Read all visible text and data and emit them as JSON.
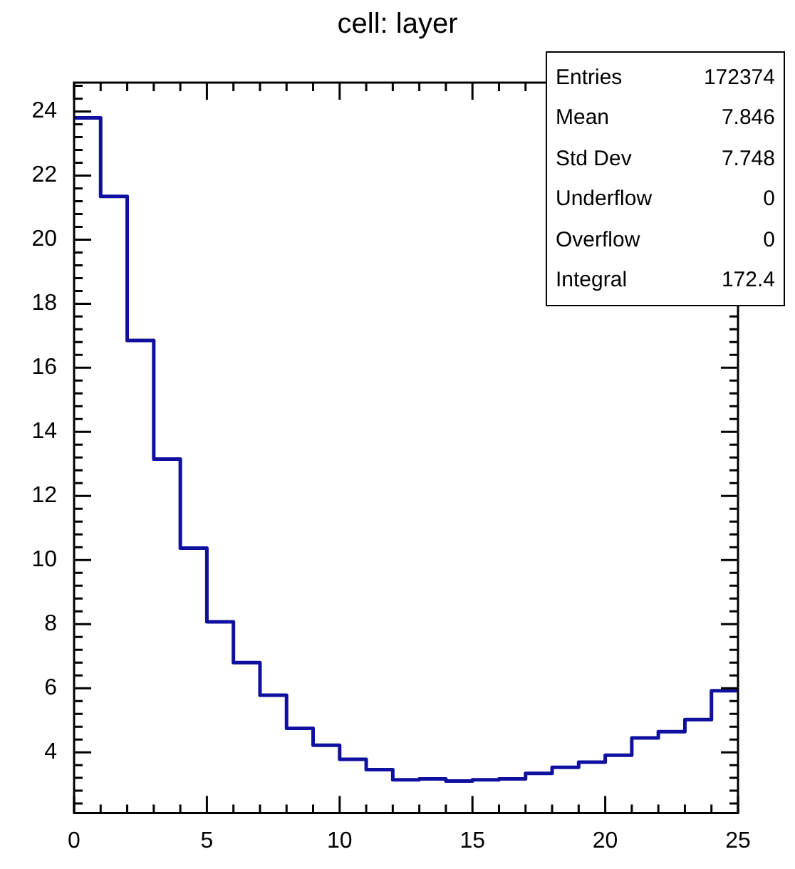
{
  "chart_data": {
    "type": "histogram",
    "title": "cell: layer",
    "bins": [
      0,
      1,
      2,
      3,
      4,
      5,
      6,
      7,
      8,
      9,
      10,
      11,
      12,
      13,
      14,
      15,
      16,
      17,
      18,
      19,
      20,
      21,
      22,
      23,
      24,
      25
    ],
    "values": [
      23.8,
      21.35,
      16.85,
      13.15,
      10.37,
      8.07,
      6.8,
      5.78,
      4.75,
      4.22,
      3.78,
      3.46,
      3.14,
      3.17,
      3.1,
      3.14,
      3.17,
      3.34,
      3.53,
      3.69,
      3.91,
      4.45,
      4.64,
      5.02,
      5.92
    ],
    "color": "#1010a0",
    "xlim": [
      0,
      25
    ],
    "xticks": [
      0,
      {
        "value": 1,
        "label": null
      },
      {
        "value": 2,
        "label": null
      },
      {
        "value": 3,
        "label": null
      },
      {
        "value": 4,
        "label": null
      },
      5,
      {
        "value": 6,
        "label": null
      },
      {
        "value": 7,
        "label": null
      },
      {
        "value": 8,
        "label": null
      },
      {
        "value": 9,
        "label": null
      },
      10,
      {
        "value": 11,
        "label": null
      },
      {
        "value": 12,
        "label": null
      },
      {
        "value": 13,
        "label": null
      },
      {
        "value": 14,
        "label": null
      },
      15,
      {
        "value": 16,
        "label": null
      },
      {
        "value": 17,
        "label": null
      },
      {
        "value": 18,
        "label": null
      },
      {
        "value": 19,
        "label": null
      },
      20,
      {
        "value": 21,
        "label": null
      },
      {
        "value": 22,
        "label": null
      },
      {
        "value": 23,
        "label": null
      },
      {
        "value": 24,
        "label": null
      },
      25
    ],
    "ylim": [
      2.1,
      24.9
    ],
    "yticks": [
      {
        "value": 2.4,
        "label": null
      },
      {
        "value": 2.8,
        "label": null
      },
      {
        "value": 3.2,
        "label": null
      },
      {
        "value": 3.6,
        "label": null
      },
      4,
      {
        "value": 4.4,
        "label": null
      },
      {
        "value": 4.8,
        "label": null
      },
      {
        "value": 5.2,
        "label": null
      },
      {
        "value": 5.6,
        "label": null
      },
      6,
      {
        "value": 6.4,
        "label": null
      },
      {
        "value": 6.8,
        "label": null
      },
      {
        "value": 7.2,
        "label": null
      },
      {
        "value": 7.6,
        "label": null
      },
      8,
      {
        "value": 8.4,
        "label": null
      },
      {
        "value": 8.8,
        "label": null
      },
      {
        "value": 9.2,
        "label": null
      },
      {
        "value": 9.6,
        "label": null
      },
      10,
      {
        "value": 10.4,
        "label": null
      },
      {
        "value": 10.8,
        "label": null
      },
      {
        "value": 11.2,
        "label": null
      },
      {
        "value": 11.6,
        "label": null
      },
      12,
      {
        "value": 12.4,
        "label": null
      },
      {
        "value": 12.8,
        "label": null
      },
      {
        "value": 13.2,
        "label": null
      },
      {
        "value": 13.6,
        "label": null
      },
      14,
      {
        "value": 14.4,
        "label": null
      },
      {
        "value": 14.8,
        "label": null
      },
      {
        "value": 15.2,
        "label": null
      },
      {
        "value": 15.6,
        "label": null
      },
      16,
      {
        "value": 16.4,
        "label": null
      },
      {
        "value": 16.8,
        "label": null
      },
      {
        "value": 17.2,
        "label": null
      },
      {
        "value": 17.6,
        "label": null
      },
      18,
      {
        "value": 18.4,
        "label": null
      },
      {
        "value": 18.8,
        "label": null
      },
      {
        "value": 19.2,
        "label": null
      },
      {
        "value": 19.6,
        "label": null
      },
      20,
      {
        "value": 20.4,
        "label": null
      },
      {
        "value": 20.8,
        "label": null
      },
      {
        "value": 21.2,
        "label": null
      },
      {
        "value": 21.6,
        "label": null
      },
      22,
      {
        "value": 22.4,
        "label": null
      },
      {
        "value": 22.8,
        "label": null
      },
      {
        "value": 23.2,
        "label": null
      },
      {
        "value": 23.6,
        "label": null
      },
      24,
      {
        "value": 24.4,
        "label": null
      },
      {
        "value": 24.8,
        "label": null
      }
    ],
    "annotations": [
      "Entries",
      "172374",
      "Mean",
      "7.846",
      "Std Dev",
      "7.748",
      "Underflow",
      "0",
      "Overflow",
      "0",
      "Integral",
      "172.4"
    ]
  }
}
